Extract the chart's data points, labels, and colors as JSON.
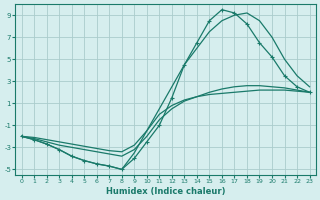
{
  "xlabel": "Humidex (Indice chaleur)",
  "background_color": "#d6eeee",
  "grid_color": "#aacccc",
  "line_color": "#1a7a6a",
  "xlim": [
    -0.5,
    23.5
  ],
  "ylim": [
    -5.5,
    10.0
  ],
  "xticks": [
    0,
    1,
    2,
    3,
    4,
    5,
    6,
    7,
    8,
    9,
    10,
    11,
    12,
    13,
    14,
    15,
    16,
    17,
    18,
    19,
    20,
    21,
    22,
    23
  ],
  "yticks": [
    -5,
    -3,
    -1,
    1,
    3,
    5,
    7,
    9
  ],
  "lines": [
    {
      "x": [
        0,
        1,
        2,
        3,
        4,
        5,
        6,
        7,
        8,
        9,
        10,
        11,
        12,
        13,
        14,
        15,
        16,
        17,
        18,
        19,
        20,
        21,
        22,
        23
      ],
      "y": [
        -2.0,
        -2.3,
        -2.7,
        -3.2,
        -3.8,
        -4.2,
        -4.5,
        -4.7,
        -5.0,
        -4.0,
        -2.5,
        -1.0,
        1.5,
        4.5,
        6.5,
        8.5,
        9.5,
        9.2,
        8.2,
        6.5,
        5.2,
        3.5,
        2.5,
        2.0
      ],
      "has_markers": true
    },
    {
      "x": [
        0,
        1,
        2,
        3,
        4,
        5,
        6,
        7,
        8,
        9,
        10,
        11,
        12,
        13,
        14,
        15,
        16,
        17,
        18,
        19,
        20,
        21,
        22,
        23
      ],
      "y": [
        -2.0,
        -2.3,
        -2.7,
        -3.2,
        -3.8,
        -4.2,
        -4.5,
        -4.7,
        -5.0,
        -3.5,
        -1.5,
        0.5,
        2.5,
        4.5,
        6.0,
        7.5,
        8.5,
        9.0,
        9.2,
        8.5,
        7.0,
        5.0,
        3.5,
        2.5
      ],
      "has_markers": false
    },
    {
      "x": [
        0,
        1,
        2,
        3,
        4,
        5,
        6,
        7,
        8,
        9,
        10,
        11,
        12,
        13,
        14,
        15,
        16,
        17,
        18,
        19,
        20,
        21,
        22,
        23
      ],
      "y": [
        -2.0,
        -2.2,
        -2.5,
        -2.8,
        -3.0,
        -3.2,
        -3.4,
        -3.6,
        -3.8,
        -3.2,
        -2.0,
        -0.5,
        0.5,
        1.2,
        1.6,
        2.0,
        2.3,
        2.5,
        2.6,
        2.6,
        2.5,
        2.4,
        2.2,
        2.0
      ],
      "has_markers": false
    },
    {
      "x": [
        0,
        1,
        2,
        3,
        4,
        5,
        6,
        7,
        8,
        9,
        10,
        11,
        12,
        13,
        14,
        15,
        16,
        17,
        18,
        19,
        20,
        21,
        22,
        23
      ],
      "y": [
        -2.0,
        -2.1,
        -2.3,
        -2.5,
        -2.7,
        -2.9,
        -3.1,
        -3.3,
        -3.4,
        -2.8,
        -1.5,
        0.0,
        0.8,
        1.3,
        1.6,
        1.8,
        1.9,
        2.0,
        2.1,
        2.2,
        2.2,
        2.2,
        2.1,
        2.0
      ],
      "has_markers": false
    }
  ]
}
